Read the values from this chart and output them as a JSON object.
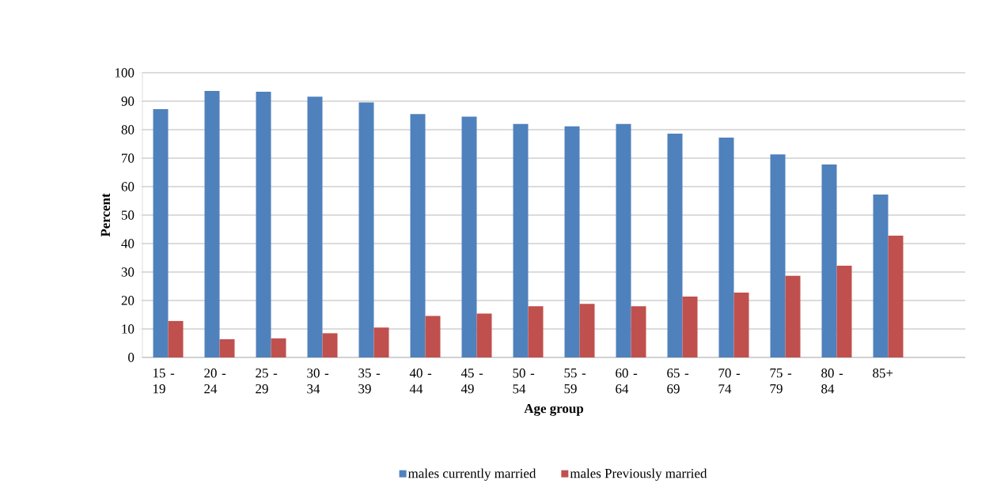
{
  "chart_data": {
    "type": "bar",
    "xlabel": "Age group",
    "ylabel": "Percent",
    "categories": [
      "15 - 19",
      "20 - 24",
      "25 - 29",
      "30 - 34",
      "35 - 39",
      "40 - 44",
      "45 - 49",
      "50 - 54",
      "55 - 59",
      "60 - 64",
      "65 - 69",
      "70 - 74",
      "75 - 79",
      "80 - 84",
      "85+",
      null
    ],
    "series": [
      {
        "name": "males currently married",
        "color": "#4f81bd",
        "values": [
          87.2,
          93.6,
          93.3,
          91.6,
          89.6,
          85.5,
          84.6,
          82.0,
          81.2,
          82.0,
          78.6,
          77.2,
          71.3,
          67.8,
          57.2,
          null
        ]
      },
      {
        "name": "males Previously married",
        "color": "#c0504d",
        "values": [
          12.8,
          6.4,
          6.7,
          8.5,
          10.5,
          14.6,
          15.4,
          18.0,
          18.8,
          18.0,
          21.4,
          22.8,
          28.7,
          32.2,
          42.8,
          null
        ]
      }
    ],
    "ylim": [
      0,
      100
    ],
    "yticks": [
      0,
      10,
      20,
      30,
      40,
      50,
      60,
      70,
      80,
      90,
      100
    ],
    "grid": "y",
    "legend": "bottom"
  }
}
